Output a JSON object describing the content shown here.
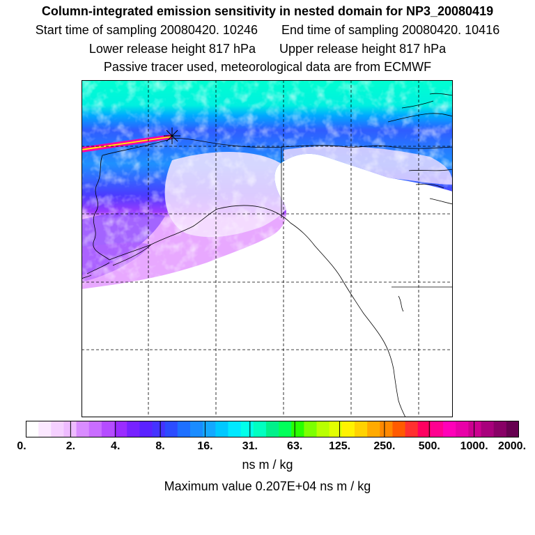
{
  "header": {
    "title": "Column-integrated emission sensitivity in nested domain for NP3_20080419",
    "start_label": "Start time of sampling 20080420. 10246",
    "end_label": "End time of sampling 20080420. 10416",
    "lower_label": "Lower release height  817 hPa",
    "upper_label": "Upper release height  817 hPa",
    "tracer_note": "Passive tracer used, meteorological data are from ECMWF"
  },
  "map": {
    "release_marker": "star-marker",
    "field_colors": {
      "ocean_high": "#00ffd0",
      "mid": "#00a8ff",
      "low": "#5a28ff",
      "lowest": "#e070ff",
      "trail_outer": "#ff00a0",
      "trail_inner": "#fff200"
    }
  },
  "colorbar": {
    "colors": [
      "#ffffff",
      "#fbe8ff",
      "#f5d0ff",
      "#eebbff",
      "#d98cff",
      "#c96dff",
      "#b54cff",
      "#9a2cff",
      "#7722ff",
      "#5a22ff",
      "#4433ff",
      "#2c4cff",
      "#1e70ff",
      "#1a8cff",
      "#14a8ff",
      "#00c8ff",
      "#00e8ff",
      "#00ffea",
      "#00ffc0",
      "#00f08a",
      "#00ff5a",
      "#28ff00",
      "#7cff00",
      "#b8ff00",
      "#e2ff00",
      "#fff200",
      "#ffd200",
      "#ffaa00",
      "#ff8800",
      "#ff5a00",
      "#ff3030",
      "#ff0060",
      "#ff0090",
      "#ff00b8",
      "#e800a8",
      "#cc0090",
      "#a8007c",
      "#880066",
      "#660050"
    ],
    "tick_labels": [
      "0.",
      "2.",
      "4.",
      "8.",
      "16.",
      "31.",
      "63.",
      "125.",
      "250.",
      "500.",
      "1000.",
      "2000."
    ],
    "units": "ns m / kg",
    "max_value": "Maximum value  0.207E+04 ns m / kg"
  }
}
